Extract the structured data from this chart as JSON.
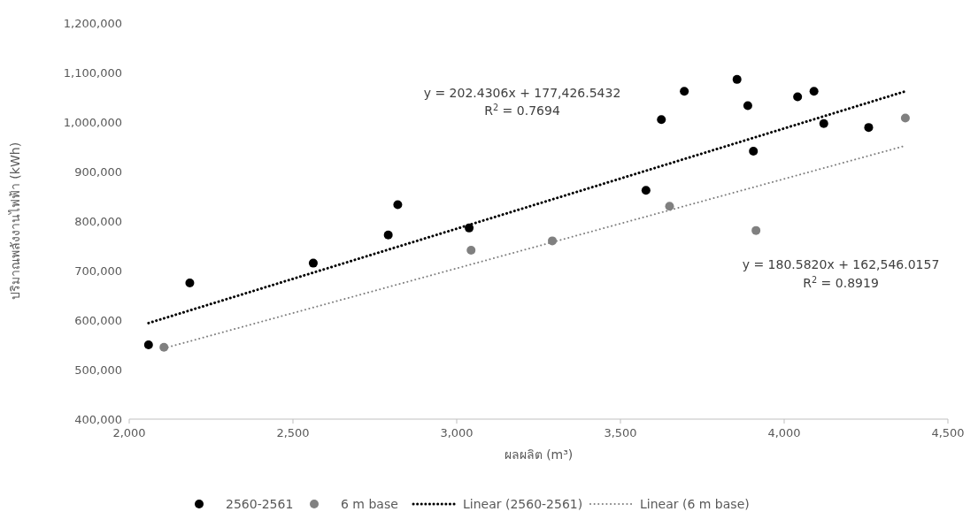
{
  "chart_data": {
    "type": "scatter",
    "xlabel": "ผลผลิต (m³)",
    "ylabel": "ปริมาณพลังงานไฟฟ้า  (kWh)",
    "xlim": [
      2000,
      4500
    ],
    "ylim": [
      400000,
      1200000
    ],
    "xticks": [
      {
        "value": 2000,
        "label": "2,000"
      },
      {
        "value": 2500,
        "label": "2,500"
      },
      {
        "value": 3000,
        "label": "3,000"
      },
      {
        "value": 3500,
        "label": "3,500"
      },
      {
        "value": 4000,
        "label": "4,000"
      },
      {
        "value": 4500,
        "label": "4,500"
      }
    ],
    "yticks": [
      {
        "value": 400000,
        "label": "400,000"
      },
      {
        "value": 500000,
        "label": "500,000"
      },
      {
        "value": 600000,
        "label": "600,000"
      },
      {
        "value": 700000,
        "label": "700,000"
      },
      {
        "value": 800000,
        "label": "800,000"
      },
      {
        "value": 900000,
        "label": "900,000"
      },
      {
        "value": 1000000,
        "label": "1,000,000"
      },
      {
        "value": 1100000,
        "label": "1,100,000"
      },
      {
        "value": 1200000,
        "label": "1,200,000"
      }
    ],
    "legend": "bottom",
    "marker": "circle",
    "series": [
      {
        "name": "2560-2561",
        "color": "#000000",
        "x": [
          2059,
          2185,
          2562,
          2791,
          2820,
          3038,
          3578,
          3625,
          3695,
          3856,
          3889,
          3906,
          4041,
          4091,
          4121,
          4258
        ],
        "values": [
          550000,
          675000,
          715000,
          772000,
          833000,
          786000,
          862000,
          1005000,
          1062000,
          1086000,
          1033000,
          941000,
          1051000,
          1062000,
          997000,
          989000
        ]
      },
      {
        "name": "6 m base",
        "color": "#808080",
        "x": [
          2106,
          3044,
          3292,
          3650,
          3914,
          4370
        ],
        "values": [
          545000,
          741000,
          760000,
          830000,
          781000,
          1008000
        ]
      },
      {
        "name": "Linear (2560-2561)",
        "type": "line",
        "marker": "none",
        "line_style": "dotted",
        "color": "#000000",
        "x": [
          2059,
          4370
        ],
        "values": [
          594000,
          1062000
        ]
      },
      {
        "name": "Linear (6 m base)",
        "type": "line",
        "marker": "none",
        "line_style": "dotted",
        "color": "#808080",
        "x": [
          2106,
          4370
        ],
        "values": [
          543000,
          952000
        ]
      }
    ],
    "annotations": [
      "y = 202.4306x + 177,426.5432",
      "R$^{2}$ = 0.7694",
      "y = 180.5820x + 162,546.0157",
      "R$^{2}$ = 0.8919"
    ]
  }
}
